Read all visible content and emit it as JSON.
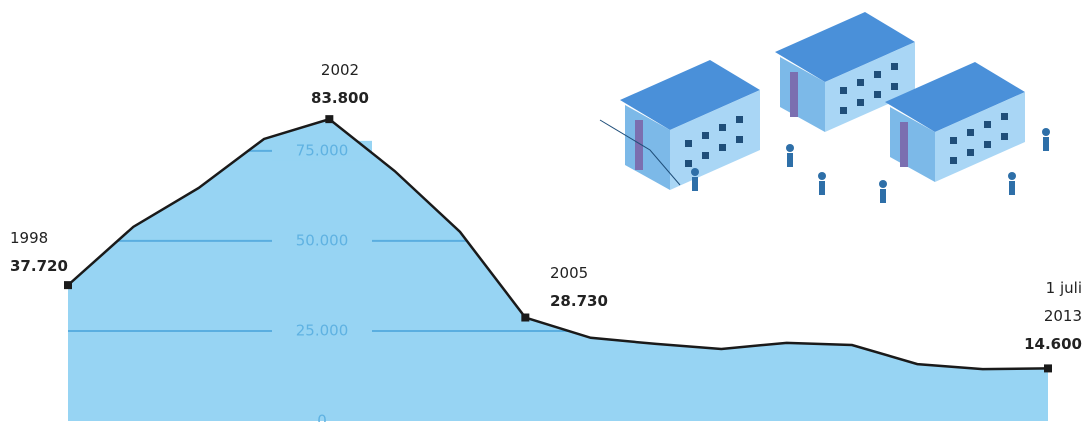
{
  "chart_data": {
    "type": "area",
    "categories": [
      "1998",
      null,
      null,
      null,
      "2002",
      null,
      null,
      "2005",
      null,
      null,
      null,
      null,
      null,
      null,
      null,
      "1 juli 2013"
    ],
    "values": [
      37720,
      53900,
      64700,
      78300,
      83800,
      69400,
      52500,
      28730,
      23100,
      21400,
      20000,
      21700,
      21100,
      15800,
      14400,
      14600
    ],
    "value_labels": [
      "37.720",
      null,
      null,
      null,
      "83.800",
      null,
      null,
      "28.730",
      null,
      null,
      null,
      null,
      null,
      null,
      null,
      "14.600"
    ],
    "color": "#97d4f3",
    "line_color": "#1a1a1a",
    "ylim": [
      0,
      93000
    ],
    "yticks": [
      {
        "value": 0,
        "label": "0"
      },
      {
        "value": 25000,
        "label": "25.000"
      },
      {
        "value": 50000,
        "label": "50.000"
      },
      {
        "value": 75000,
        "label": "75.000"
      }
    ],
    "grid": true
  }
}
